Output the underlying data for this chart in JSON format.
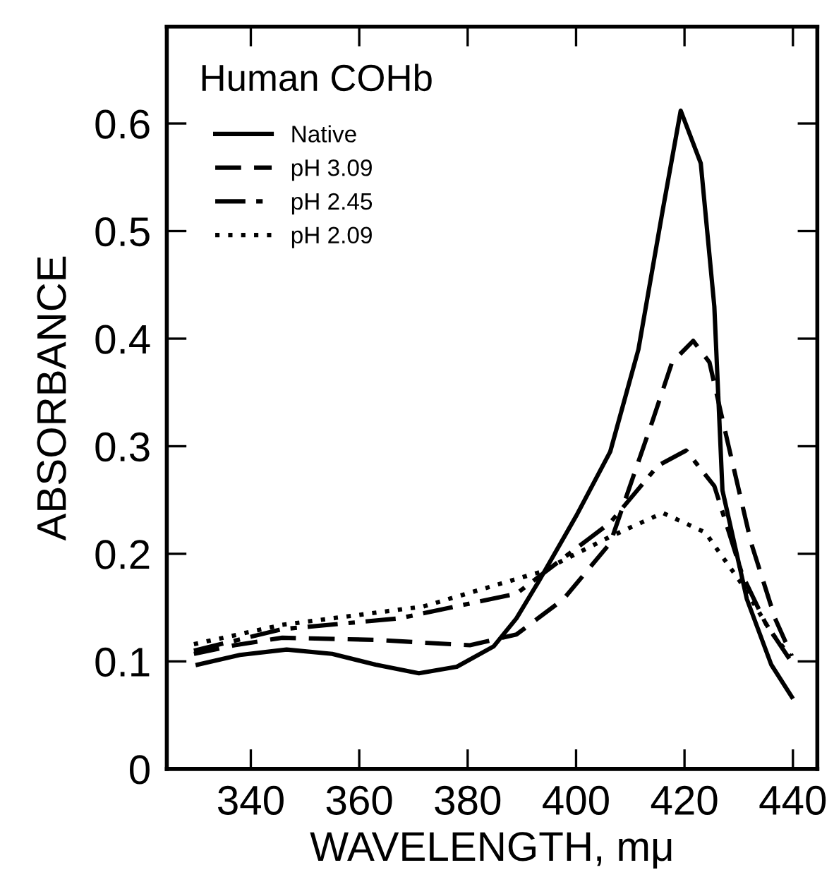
{
  "chart_data": {
    "type": "line",
    "title": "Human COHb",
    "xlabel": "WAVELENGTH, mμ",
    "ylabel": "ABSORBANCE",
    "xlim": [
      324.5,
      444.5
    ],
    "xticks": [
      340,
      360,
      380,
      400,
      420,
      440
    ],
    "ylim": [
      0,
      0.69
    ],
    "yticks": [
      0,
      0.1,
      0.2,
      0.3,
      0.4,
      0.5,
      0.6
    ],
    "legend": "top left",
    "grid": false,
    "series": [
      {
        "name": "Native",
        "color": "#000000",
        "line_style": "solid",
        "x": [
          330.2,
          338,
          346.6,
          355,
          363,
          371,
          378,
          384.8,
          389,
          393.3,
          400,
          406.3,
          411.5,
          416,
          419.3,
          423,
          425.5,
          427,
          431.5,
          436,
          439.8
        ],
        "values": [
          0.097,
          0.106,
          0.111,
          0.107,
          0.097,
          0.089,
          0.095,
          0.114,
          0.14,
          0.176,
          0.235,
          0.295,
          0.39,
          0.52,
          0.612,
          0.563,
          0.43,
          0.259,
          0.158,
          0.097,
          0.067
        ]
      },
      {
        "name": "pH 3.09",
        "color": "#000000",
        "line_style": "dashed",
        "x": [
          329.5,
          337,
          345.8,
          363,
          380.4,
          389,
          397.7,
          406.3,
          414.2,
          417.7,
          421.6,
          424.6,
          428,
          432.3,
          436.7,
          439.8
        ],
        "values": [
          0.107,
          0.115,
          0.122,
          0.12,
          0.115,
          0.125,
          0.158,
          0.21,
          0.325,
          0.378,
          0.398,
          0.378,
          0.303,
          0.21,
          0.14,
          0.105
        ]
      },
      {
        "name": "pH 2.45",
        "color": "#000000",
        "line_style": "dashdot",
        "x": [
          329.5,
          345.8,
          367.4,
          389,
          406.3,
          415.1,
          420.3,
          425.5,
          430.7,
          434.9,
          439.8
        ],
        "values": [
          0.11,
          0.13,
          0.14,
          0.163,
          0.229,
          0.282,
          0.296,
          0.263,
          0.18,
          0.136,
          0.099
        ]
      },
      {
        "name": "pH 2.09",
        "color": "#000000",
        "line_style": "dotted",
        "x": [
          329.5,
          345.8,
          371.8,
          393.3,
          406.3,
          416,
          423.8,
          430.7,
          436,
          439.5
        ],
        "values": [
          0.116,
          0.134,
          0.151,
          0.183,
          0.216,
          0.238,
          0.22,
          0.171,
          0.127,
          0.105
        ]
      }
    ]
  }
}
